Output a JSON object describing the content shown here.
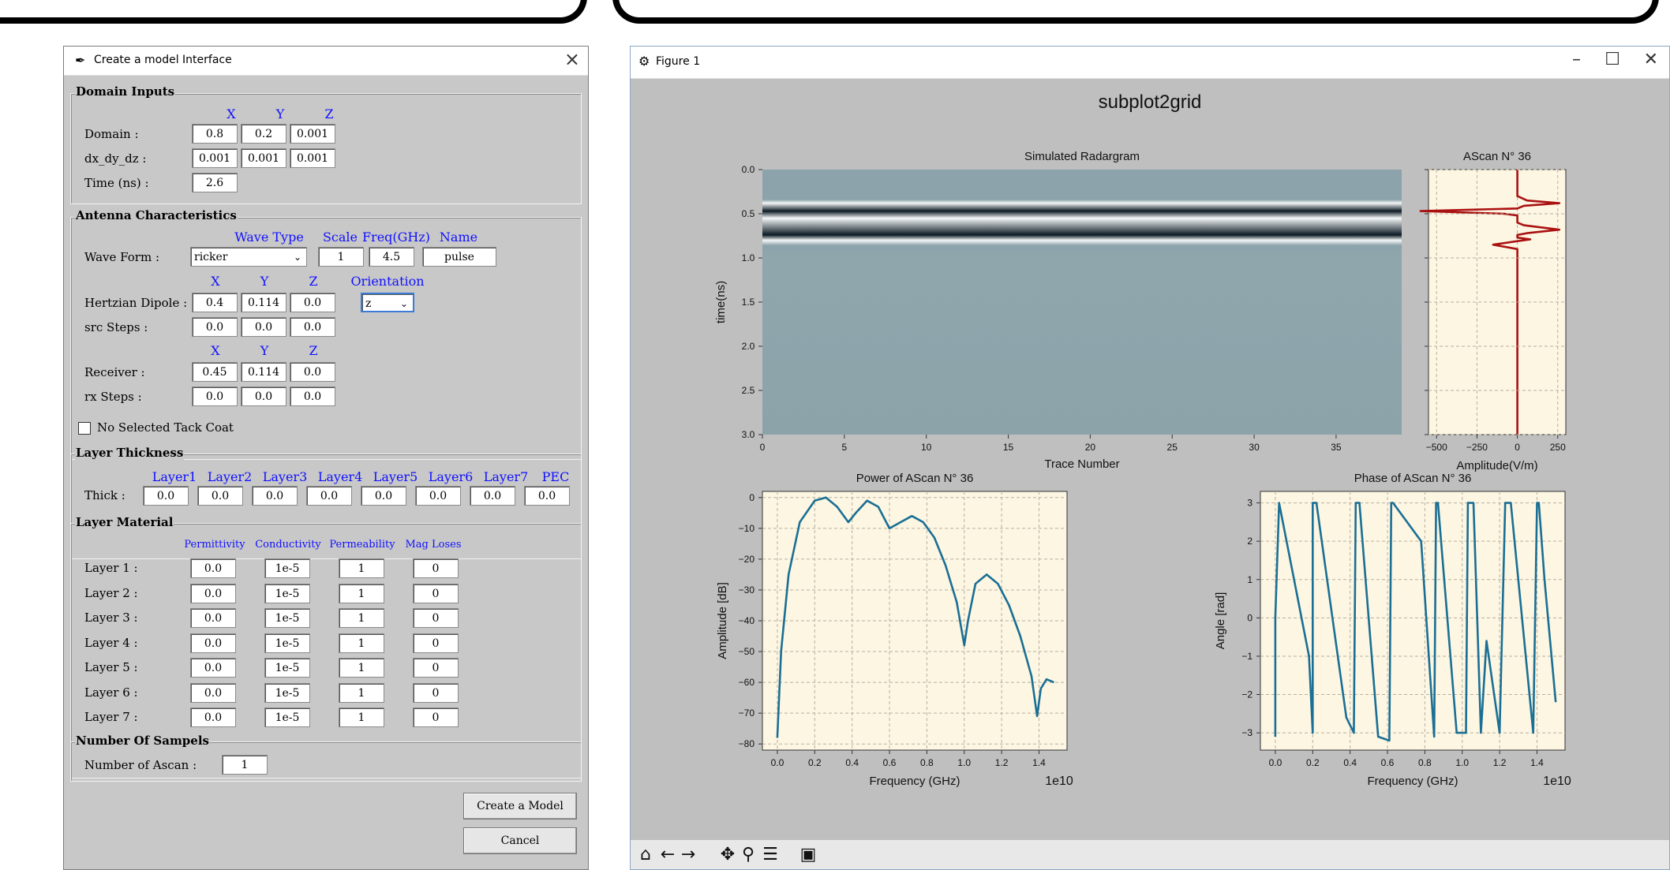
{
  "dialog": {
    "title": "Create a model Interface",
    "domain_inputs": {
      "label": "Domain Inputs",
      "headers": [
        "X",
        "Y",
        "Z"
      ],
      "domain_label": "Domain :",
      "domain": [
        "0.8",
        "0.2",
        "0.001"
      ],
      "dx_label": "dx_dy_dz :",
      "dx": [
        "0.001",
        "0.001",
        "0.001"
      ],
      "time_label": "Time (ns) :",
      "time": "2.6"
    },
    "antenna": {
      "label": "Antenna Characteristics",
      "wave_headers": [
        "Wave Type",
        "Scale",
        "Freq(GHz)",
        "Name"
      ],
      "waveform_label": "Wave Form :",
      "wave_type": "ricker",
      "scale": "1",
      "freq": "4.5",
      "name": "pulse",
      "xyz_headers": [
        "X",
        "Y",
        "Z"
      ],
      "orientation_header": "Orientation",
      "dipole_label": "Hertzian Dipole :",
      "dipole": [
        "0.4",
        "0.114",
        "0.0"
      ],
      "orientation": "z",
      "src_label": "src Steps :",
      "src": [
        "0.0",
        "0.0",
        "0.0"
      ],
      "receiver_label": "Receiver :",
      "receiver": [
        "0.45",
        "0.114",
        "0.0"
      ],
      "rx_label": "rx Steps :",
      "rx": [
        "0.0",
        "0.0",
        "0.0"
      ]
    },
    "tack_coat_label": "No Selected Tack Coat",
    "thickness": {
      "label": "Layer Thickness",
      "headers": [
        "Layer1",
        "Layer2",
        "Layer3",
        "Layer4",
        "Layer5",
        "Layer6",
        "Layer7",
        "PEC"
      ],
      "row_label": "Thick :",
      "values": [
        "0.0",
        "0.0",
        "0.0",
        "0.0",
        "0.0",
        "0.0",
        "0.0",
        "0.0"
      ]
    },
    "material": {
      "label": "Layer Material",
      "headers": [
        "Permittivity",
        "Conductivity",
        "Permeability",
        "Mag Loses"
      ],
      "rows": [
        {
          "label": "Layer 1 :",
          "values": [
            "0.0",
            "1e-5",
            "1",
            "0"
          ]
        },
        {
          "label": "Layer 2 :",
          "values": [
            "0.0",
            "1e-5",
            "1",
            "0"
          ]
        },
        {
          "label": "Layer 3 :",
          "values": [
            "0.0",
            "1e-5",
            "1",
            "0"
          ]
        },
        {
          "label": "Layer 4 :",
          "values": [
            "0.0",
            "1e-5",
            "1",
            "0"
          ]
        },
        {
          "label": "Layer 5 :",
          "values": [
            "0.0",
            "1e-5",
            "1",
            "0"
          ]
        },
        {
          "label": "Layer 6 :",
          "values": [
            "0.0",
            "1e-5",
            "1",
            "0"
          ]
        },
        {
          "label": "Layer 7 :",
          "values": [
            "0.0",
            "1e-5",
            "1",
            "0"
          ]
        }
      ]
    },
    "samples": {
      "label": "Number Of Sampels",
      "ascan_label": "Number of Ascan :",
      "ascan": "1"
    },
    "create_button": "Create a Model",
    "cancel_button": "Cancel"
  },
  "figure": {
    "window_title": "Figure 1",
    "suptitle": "subplot2grid",
    "minimize": "–",
    "maximize": "☐",
    "close": "✕",
    "toolbar_icons": [
      "home-icon",
      "back-icon",
      "forward-icon",
      "pan-icon",
      "zoom-icon",
      "configure-icon",
      "save-icon"
    ]
  },
  "chart_data": [
    {
      "type": "heatmap",
      "title": "Simulated Radargram",
      "xlabel": "Trace Number",
      "ylabel": "time(ns)",
      "xlim": [
        0,
        39
      ],
      "ylim": [
        3.0,
        0.0
      ],
      "xticks": [
        "0",
        "5",
        "10",
        "15",
        "20",
        "25",
        "30",
        "35"
      ],
      "yticks": [
        "0.0",
        "0.5",
        "1.0",
        "1.5",
        "2.0",
        "2.5",
        "3.0"
      ],
      "bands": [
        {
          "t": 0.38,
          "value": "light"
        },
        {
          "t": 0.47,
          "value": "dark"
        },
        {
          "t": 0.55,
          "value": "light"
        },
        {
          "t": 0.74,
          "value": "dark"
        },
        {
          "t": 0.8,
          "value": "light"
        }
      ]
    },
    {
      "type": "line",
      "title": "AScan N° 36",
      "xlabel": "Amplitude(V/m)",
      "xticks": [
        "−500",
        "−250",
        "0",
        "250"
      ],
      "xlim": [
        -550,
        300
      ],
      "ylim": [
        3.0,
        0.0
      ],
      "series": [
        {
          "color": "#aa1111",
          "x": [
            0,
            0,
            60,
            260,
            40,
            0,
            -600,
            -80,
            0,
            0,
            40,
            260,
            60,
            0,
            0,
            80,
            0,
            -150,
            0,
            0,
            0
          ],
          "y": [
            0.0,
            0.3,
            0.35,
            0.38,
            0.41,
            0.44,
            0.47,
            0.5,
            0.52,
            0.6,
            0.63,
            0.68,
            0.72,
            0.74,
            0.77,
            0.79,
            0.81,
            0.85,
            0.9,
            1.0,
            3.0
          ]
        }
      ]
    },
    {
      "type": "line",
      "title": "Power of AScan N° 36",
      "xlabel": "Frequency (GHz)",
      "ylabel": "Amplitude [dB]",
      "x_multiplier": "1e10",
      "xlim": [
        -0.08,
        1.55
      ],
      "ylim": [
        -82,
        2
      ],
      "xticks": [
        "0.0",
        "0.2",
        "0.4",
        "0.6",
        "0.8",
        "1.0",
        "1.2",
        "1.4"
      ],
      "yticks": [
        "0",
        "−10",
        "−20",
        "−30",
        "−40",
        "−50",
        "−60",
        "−70",
        "−80"
      ],
      "series": [
        {
          "color": "#1a6f94",
          "x": [
            0.0,
            0.02,
            0.06,
            0.12,
            0.2,
            0.26,
            0.32,
            0.38,
            0.42,
            0.48,
            0.54,
            0.6,
            0.66,
            0.72,
            0.78,
            0.84,
            0.9,
            0.96,
            1.0,
            1.02,
            1.06,
            1.12,
            1.18,
            1.24,
            1.3,
            1.36,
            1.39,
            1.41,
            1.44,
            1.48
          ],
          "y": [
            -78,
            -50,
            -25,
            -8,
            -1,
            0,
            -3,
            -8,
            -5,
            -1,
            -3,
            -10,
            -8,
            -6,
            -8,
            -13,
            -22,
            -34,
            -48,
            -40,
            -28,
            -25,
            -28,
            -35,
            -45,
            -58,
            -71,
            -62,
            -59,
            -60
          ]
        }
      ]
    },
    {
      "type": "line",
      "title": "Phase of AScan N° 36",
      "xlabel": "Frequency (GHz)",
      "ylabel": "Angle [rad]",
      "x_multiplier": "1e10",
      "xlim": [
        -0.08,
        1.55
      ],
      "ylim": [
        -3.45,
        3.3
      ],
      "xticks": [
        "0.0",
        "0.2",
        "0.4",
        "0.6",
        "0.8",
        "1.0",
        "1.2",
        "1.4"
      ],
      "yticks": [
        "3",
        "2",
        "1",
        "0",
        "−1",
        "−2",
        "−3"
      ],
      "series": [
        {
          "color": "#1a6f94",
          "x": [
            0.0,
            0.0,
            0.02,
            0.18,
            0.2,
            0.2,
            0.22,
            0.38,
            0.42,
            0.43,
            0.45,
            0.55,
            0.61,
            0.62,
            0.63,
            0.78,
            0.85,
            0.86,
            0.87,
            0.97,
            1.02,
            1.03,
            1.06,
            1.1,
            1.13,
            1.2,
            1.23,
            1.24,
            1.26,
            1.38,
            1.4,
            1.41,
            1.44,
            1.5
          ],
          "y": [
            -3.1,
            0.0,
            3.0,
            -1.0,
            -3.0,
            3.0,
            3.0,
            -2.6,
            -3.0,
            3.0,
            3.0,
            -3.1,
            -3.2,
            3.0,
            3.0,
            2.0,
            -3.1,
            3.0,
            3.0,
            -3.0,
            -3.0,
            3.0,
            3.0,
            -3.0,
            -0.6,
            -3.0,
            3.0,
            3.0,
            3.0,
            -3.0,
            3.0,
            3.0,
            1.0,
            -2.2
          ]
        }
      ]
    }
  ]
}
